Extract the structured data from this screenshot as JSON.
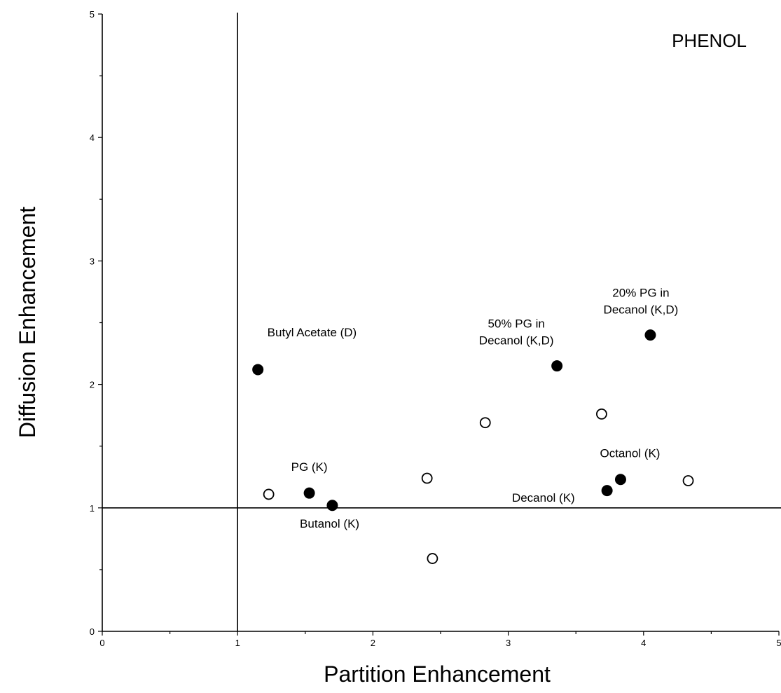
{
  "chart_data": {
    "type": "scatter",
    "title": "PHENOL",
    "xlabel": "Partition Enhancement",
    "ylabel": "Diffusion Enhancement",
    "xlim": [
      0,
      5
    ],
    "ylim": [
      0,
      5
    ],
    "xticks": [
      0,
      1,
      2,
      3,
      4,
      5
    ],
    "yticks": [
      0,
      1,
      2,
      3,
      4,
      5
    ],
    "reference_lines": {
      "x": 1,
      "y": 1
    },
    "grid": false,
    "series": [
      {
        "marker": "filled-circle",
        "points": [
          {
            "x": 1.15,
            "y": 2.12
          },
          {
            "x": 1.53,
            "y": 1.12
          },
          {
            "x": 1.7,
            "y": 1.02
          },
          {
            "x": 3.36,
            "y": 2.15
          },
          {
            "x": 4.05,
            "y": 2.4
          },
          {
            "x": 3.73,
            "y": 1.14
          },
          {
            "x": 3.83,
            "y": 1.23
          }
        ]
      },
      {
        "marker": "open-circle",
        "points": [
          {
            "x": 1.23,
            "y": 1.11
          },
          {
            "x": 2.4,
            "y": 1.24
          },
          {
            "x": 2.44,
            "y": 0.59
          },
          {
            "x": 2.83,
            "y": 1.69
          },
          {
            "x": 3.69,
            "y": 1.76
          },
          {
            "x": 4.33,
            "y": 1.22
          }
        ]
      }
    ],
    "annotations": [
      {
        "text": "Butyl Acetate (D)",
        "x": 1.55,
        "y": 2.39,
        "lines": [
          "Butyl Acetate (D)"
        ]
      },
      {
        "text": "PG (K)",
        "x": 1.53,
        "y": 1.3,
        "lines": [
          "PG (K)"
        ]
      },
      {
        "text": "Butanol (K)",
        "x": 1.68,
        "y": 0.84,
        "lines": [
          "Butanol (K)"
        ]
      },
      {
        "text": "50% PG in Decanol (K,D)",
        "x": 3.06,
        "y": 2.46,
        "lines": [
          "50% PG in",
          "Decanol (K,D)"
        ]
      },
      {
        "text": "20% PG in Decanol (K,D)",
        "x": 3.98,
        "y": 2.71,
        "lines": [
          "20% PG in",
          "Decanol (K,D)"
        ]
      },
      {
        "text": "Octanol (K)",
        "x": 3.9,
        "y": 1.41,
        "lines": [
          "Octanol (K)"
        ]
      },
      {
        "text": "Decanol (K)",
        "x": 3.26,
        "y": 1.05,
        "lines": [
          "Decanol (K)"
        ]
      }
    ]
  }
}
